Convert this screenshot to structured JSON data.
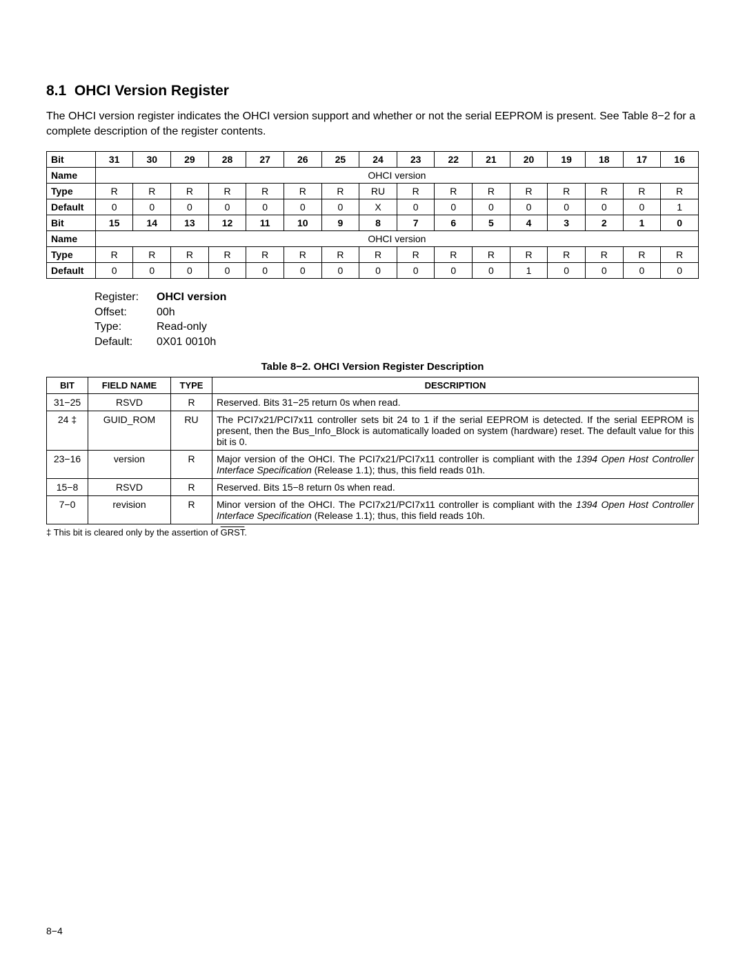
{
  "section": {
    "number": "8.1",
    "title": "OHCI Version Register"
  },
  "intro": "The OHCI version register indicates the OHCI version support and whether or not the serial EEPROM is present. See Table 8−2 for a complete description of the register contents.",
  "bitmap": {
    "rows": [
      {
        "label": "Bit",
        "cells": [
          "31",
          "30",
          "29",
          "28",
          "27",
          "26",
          "25",
          "24",
          "23",
          "22",
          "21",
          "20",
          "19",
          "18",
          "17",
          "16"
        ],
        "bold": true
      },
      {
        "label": "Name",
        "merged": "OHCI version"
      },
      {
        "label": "Type",
        "cells": [
          "R",
          "R",
          "R",
          "R",
          "R",
          "R",
          "R",
          "RU",
          "R",
          "R",
          "R",
          "R",
          "R",
          "R",
          "R",
          "R"
        ]
      },
      {
        "label": "Default",
        "cells": [
          "0",
          "0",
          "0",
          "0",
          "0",
          "0",
          "0",
          "X",
          "0",
          "0",
          "0",
          "0",
          "0",
          "0",
          "0",
          "1"
        ]
      },
      {
        "label": "Bit",
        "cells": [
          "15",
          "14",
          "13",
          "12",
          "11",
          "10",
          "9",
          "8",
          "7",
          "6",
          "5",
          "4",
          "3",
          "2",
          "1",
          "0"
        ],
        "bold": true
      },
      {
        "label": "Name",
        "merged": "OHCI version"
      },
      {
        "label": "Type",
        "cells": [
          "R",
          "R",
          "R",
          "R",
          "R",
          "R",
          "R",
          "R",
          "R",
          "R",
          "R",
          "R",
          "R",
          "R",
          "R",
          "R"
        ]
      },
      {
        "label": "Default",
        "cells": [
          "0",
          "0",
          "0",
          "0",
          "0",
          "0",
          "0",
          "0",
          "0",
          "0",
          "0",
          "1",
          "0",
          "0",
          "0",
          "0"
        ]
      }
    ]
  },
  "reg_info": {
    "register_label": "Register:",
    "register_value": "OHCI version",
    "offset_label": "Offset:",
    "offset_value": "00h",
    "type_label": "Type:",
    "type_value": "Read-only",
    "default_label": "Default:",
    "default_value": "0X01 0010h"
  },
  "table_caption": "Table 8−2. OHCI Version Register Description",
  "desc_table": {
    "headers": [
      "BIT",
      "FIELD NAME",
      "TYPE",
      "DESCRIPTION"
    ],
    "col_widths": [
      "60px",
      "120px",
      "60px",
      "auto"
    ],
    "rows": [
      {
        "bit": "31−25",
        "field": "RSVD",
        "type": "R",
        "desc_plain": "Reserved. Bits 31−25 return 0s when read."
      },
      {
        "bit": "24 ‡",
        "field": "GUID_ROM",
        "type": "RU",
        "desc_plain": "The PCI7x21/PCI7x11 controller sets bit 24 to 1 if the serial EEPROM is detected. If the serial EEPROM is present, then the Bus_Info_Block is automatically loaded on system (hardware) reset. The default value for this bit is 0."
      },
      {
        "bit": "23−16",
        "field": "version",
        "type": "R",
        "desc_pre": "Major version of the OHCI. The PCI7x21/PCI7x11 controller is compliant with the ",
        "desc_italic": "1394 Open Host Controller Interface Specification",
        "desc_post": " (Release 1.1); thus, this field reads 01h."
      },
      {
        "bit": "15−8",
        "field": "RSVD",
        "type": "R",
        "desc_plain": "Reserved. Bits 15−8 return 0s when read."
      },
      {
        "bit": "7−0",
        "field": "revision",
        "type": "R",
        "desc_pre": "Minor version of the OHCI. The PCI7x21/PCI7x11 controller is compliant with the ",
        "desc_italic": "1394 Open Host Controller Interface Specification",
        "desc_post": " (Release 1.1); thus, this field reads 10h."
      }
    ]
  },
  "footnote_pre": "‡ This bit is cleared only by the assertion of ",
  "footnote_over": "GRST",
  "footnote_post": ".",
  "page_number": "8−4"
}
